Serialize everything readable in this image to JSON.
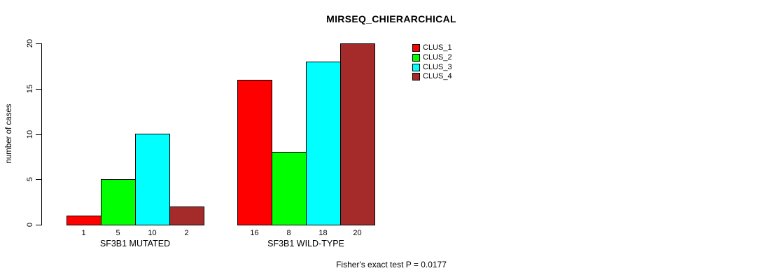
{
  "chart_data": {
    "type": "bar",
    "title": "MIRSEQ_CHIERARCHICAL",
    "ylabel": "number of cases",
    "ylim": [
      0,
      20
    ],
    "yticks": [
      0,
      5,
      10,
      15,
      20
    ],
    "grid": false,
    "legend_position": "top-right",
    "categories": [
      "SF3B1 MUTATED",
      "SF3B1 WILD-TYPE"
    ],
    "groups": [
      {
        "label": "SF3B1 MUTATED",
        "values": [
          1,
          5,
          10,
          2
        ]
      },
      {
        "label": "SF3B1 WILD-TYPE",
        "values": [
          16,
          8,
          18,
          20
        ]
      }
    ],
    "series": [
      {
        "name": "CLUS_1",
        "color": "#FF0000"
      },
      {
        "name": "CLUS_2",
        "color": "#00FF00"
      },
      {
        "name": "CLUS_3",
        "color": "#00FFFF"
      },
      {
        "name": "CLUS_4",
        "color": "#A52A2A"
      }
    ],
    "bar_value_labels_shown": true,
    "annotation": "Fisher's exact test P = 0.0177"
  }
}
